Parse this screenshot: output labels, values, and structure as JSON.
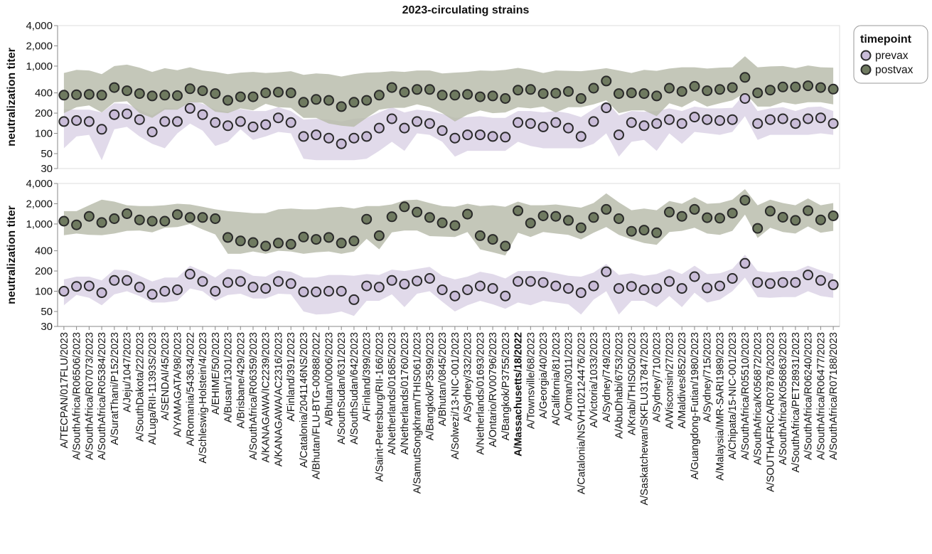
{
  "chart_data": {
    "type": "scatter",
    "title": "2023-circulating strains",
    "ylabel": "neutralization titer",
    "yscale": "log",
    "ylim": [
      30,
      4000
    ],
    "yticks": [
      30,
      50,
      100,
      200,
      400,
      1000,
      2000,
      4000
    ],
    "ytick_labels": [
      "30",
      "50",
      "100",
      "200",
      "400",
      "1,000",
      "2,000",
      "4,000"
    ],
    "grid": false,
    "legend": {
      "title": "timepoint",
      "placement": "top-right",
      "entries": [
        {
          "name": "prevax",
          "color": "#c9bcd8"
        },
        {
          "name": "postvax",
          "color": "#6f7a60"
        }
      ]
    },
    "colors": {
      "prevax_fill": "#c9bcd8",
      "prevax_band": "#dcd3e6",
      "postvax_fill": "#6f7a60",
      "postvax_band": "#b7bbaa",
      "marker_edge": "#2a2a2a"
    },
    "highlight_category": "A/Massachusetts/18/2022",
    "categories": [
      "A/TECPAN/017FLU/2023",
      "A/SouthAfrica/R06506/2023",
      "A/SouthAfrica/R07073/2023",
      "A/SouthAfrica/R05384/2023",
      "A/SuratThani/P152/2023",
      "A/Jeju/1047/2023",
      "A/SouthDakota/22/2023",
      "A/Luga/RII-11393S/2023",
      "A/SENDAI/45/2023",
      "A/YAMAGATA/98/2023",
      "A/Romania/543634/2022",
      "A/Schleswig-Holstein/4/2023",
      "A/EHIME/50/2023",
      "A/Busan/1301/2023",
      "A/Brisbane/429/2023",
      "A/SouthAfrica/R06359/2023",
      "A/KANAGAWA/IC2239/2023",
      "A/KANAGAWA/AC2316/2023",
      "A/Finland/391/2023",
      "A/Catalonia/2041146NS/2023",
      "A/Bhutan/FLU-BTG-00988/2022",
      "A/Bhutan/0006/2023",
      "A/SouthSudan/631/2023",
      "A/SouthSudan/642/2023",
      "A/Finland/399/2023",
      "A/Saint-Petersburg/RII-166/2023",
      "A/Netherlands/01685/2023",
      "A/Netherlands/01760/2023",
      "A/SamutSongkhram/THIS061/2023",
      "A/Bangkok/P3599/2023",
      "A/Bhutan/0845/2023",
      "A/Solwezi/13-NIC-001/2023",
      "A/Sydney/332/2023",
      "A/Netherlands/01693/2023",
      "A/Ontario/RV00796/2023",
      "A/Bangkok/P3755/2023",
      "A/Massachusetts/18/2022",
      "A/Townsville/68/2023",
      "A/Georgia/40/2023",
      "A/California/81/2023",
      "A/Oman/3011/2023",
      "A/Catalonia/NSVH102124476/2023",
      "A/Victoria/1033/2023",
      "A/Sydney/749/2023",
      "A/AbuDhabi/6753/2023",
      "A/Krabi/THIS050/2023",
      "A/Saskatchewan/SKFLU317847/2023",
      "A/Sydney/710/2023",
      "A/Wisconsin/27/2023",
      "A/Maldives/852/2023",
      "A/Guangdong-Futian/1980/2023",
      "A/Sydney/715/2023",
      "A/Malaysia/IMR-SARI1989/2023",
      "A/Chipata/15-NIC-001/2023",
      "A/SouthAfrica/R05510/2023",
      "A/SouthAfrica/K056872/2023",
      "A/SOUTHAFRICA/R07876/202023",
      "A/SouthAfrica/K056863/2023",
      "A/SouthAfrica/PET28931/2023",
      "A/SouthAfrica/R06240/2023",
      "A/SouthAfrica/R06477/2023",
      "A/SouthAfrica/R07188/2023"
    ],
    "panels": [
      {
        "series": [
          {
            "name": "prevax",
            "values": [
              150,
              155,
              150,
              115,
              190,
              195,
              160,
              105,
              150,
              150,
              235,
              190,
              145,
              130,
              150,
              125,
              135,
              170,
              145,
              90,
              95,
              85,
              70,
              85,
              90,
              120,
              165,
              120,
              150,
              140,
              110,
              85,
              95,
              95,
              90,
              88,
              145,
              140,
              125,
              145,
              120,
              90,
              150,
              240,
              95,
              145,
              130,
              140,
              160,
              140,
              175,
              160,
              155,
              160,
              330,
              140,
              160,
              165,
              140,
              165,
              170,
              140
            ],
            "lower": [
              60,
              90,
              95,
              40,
              115,
              125,
              90,
              70,
              60,
              100,
              140,
              110,
              65,
              75,
              115,
              80,
              90,
              105,
              100,
              42,
              40,
              40,
              40,
              40,
              42,
              55,
              75,
              55,
              100,
              95,
              75,
              45,
              55,
              55,
              55,
              55,
              75,
              65,
              60,
              60,
              60,
              60,
              70,
              100,
              45,
              75,
              80,
              55,
              100,
              70,
              105,
              100,
              95,
              105,
              180,
              80,
              95,
              95,
              95,
              95,
              100,
              95
            ],
            "upper": [
              230,
              225,
              225,
              205,
              280,
              275,
              225,
              185,
              240,
              230,
              305,
              275,
              225,
              210,
              230,
              215,
              215,
              245,
              215,
              160,
              165,
              160,
              150,
              165,
              170,
              205,
              245,
              205,
              225,
              215,
              195,
              170,
              175,
              180,
              170,
              170,
              215,
              215,
              205,
              215,
              200,
              175,
              230,
              300,
              185,
              215,
              210,
              215,
              235,
              215,
              250,
              235,
              235,
              240,
              395,
              215,
              235,
              245,
              215,
              245,
              250,
              215
            ]
          },
          {
            "name": "postvax",
            "values": [
              370,
              375,
              380,
              370,
              480,
              430,
              390,
              360,
              370,
              365,
              460,
              430,
              390,
              310,
              350,
              350,
              400,
              410,
              400,
              290,
              320,
              310,
              250,
              290,
              310,
              370,
              480,
              410,
              450,
              450,
              370,
              370,
              380,
              350,
              360,
              330,
              440,
              450,
              390,
              395,
              420,
              330,
              470,
              600,
              390,
              400,
              390,
              360,
              470,
              420,
              500,
              430,
              450,
              480,
              680,
              400,
              440,
              490,
              490,
              510,
              480,
              455
            ],
            "lower": [
              200,
              245,
              260,
              205,
              290,
              300,
              200,
              170,
              225,
              225,
              290,
              285,
              210,
              200,
              235,
              220,
              275,
              245,
              240,
              170,
              170,
              140,
              130,
              125,
              170,
              225,
              240,
              240,
              270,
              245,
              200,
              150,
              190,
              220,
              200,
              205,
              245,
              235,
              250,
              205,
              245,
              245,
              270,
              310,
              200,
              220,
              220,
              180,
              280,
              245,
              310,
              250,
              280,
              310,
              400,
              250,
              250,
              290,
              270,
              290,
              290,
              270
            ],
            "upper": [
              790,
              880,
              860,
              760,
              1000,
              1050,
              950,
              820,
              930,
              870,
              960,
              860,
              820,
              760,
              800,
              820,
              790,
              810,
              840,
              740,
              780,
              760,
              700,
              760,
              800,
              810,
              840,
              820,
              860,
              860,
              780,
              800,
              820,
              860,
              850,
              880,
              940,
              880,
              790,
              860,
              850,
              840,
              880,
              930,
              860,
              790,
              880,
              850,
              920,
              960,
              960,
              920,
              950,
              960,
              1400,
              960,
              990,
              1000,
              930,
              1020,
              960,
              950
            ]
          }
        ]
      },
      {
        "series": [
          {
            "name": "prevax",
            "values": [
              100,
              118,
              120,
              95,
              145,
              145,
              115,
              90,
              100,
              105,
              180,
              140,
              100,
              135,
              140,
              115,
              110,
              140,
              130,
              98,
              98,
              100,
              100,
              75,
              120,
              115,
              145,
              128,
              142,
              155,
              105,
              85,
              105,
              120,
              110,
              85,
              140,
              140,
              135,
              120,
              110,
              95,
              120,
              195,
              110,
              118,
              105,
              110,
              140,
              110,
              165,
              112,
              120,
              155,
              260,
              135,
              130,
              135,
              135,
              175,
              145,
              125
            ],
            "lower": [
              62,
              88,
              80,
              62,
              90,
              100,
              85,
              68,
              68,
              72,
              110,
              100,
              72,
              88,
              92,
              78,
              78,
              92,
              90,
              50,
              45,
              46,
              50,
              43,
              72,
              72,
              90,
              58,
              92,
              100,
              70,
              50,
              62,
              72,
              64,
              55,
              68,
              62,
              72,
              68,
              64,
              45,
              75,
              100,
              45,
              72,
              72,
              58,
              85,
              58,
              95,
              68,
              75,
              100,
              160,
              82,
              80,
              82,
              82,
              100,
              85,
              80
            ],
            "upper": [
              150,
              165,
              165,
              145,
              210,
              205,
              170,
              140,
              160,
              160,
              240,
              200,
              160,
              215,
              210,
              170,
              165,
              205,
              195,
              160,
              160,
              175,
              175,
              170,
              180,
              175,
              210,
              200,
              215,
              230,
              170,
              150,
              165,
              195,
              180,
              155,
              200,
              200,
              200,
              185,
              170,
              165,
              190,
              255,
              175,
              185,
              170,
              180,
              215,
              180,
              240,
              180,
              185,
              215,
              350,
              200,
              190,
              200,
              200,
              240,
              205,
              180
            ]
          },
          {
            "name": "postvax",
            "values": [
              1100,
              970,
              1300,
              1050,
              1200,
              1420,
              1150,
              1100,
              1100,
              1380,
              1250,
              1250,
              1200,
              630,
              560,
              530,
              470,
              520,
              500,
              640,
              590,
              630,
              520,
              560,
              1180,
              670,
              1280,
              1800,
              1500,
              1250,
              1040,
              950,
              1400,
              670,
              590,
              470,
              1570,
              1030,
              1320,
              1300,
              1130,
              880,
              1250,
              1650,
              1200,
              780,
              810,
              740,
              1500,
              1300,
              1650,
              1240,
              1220,
              1450,
              2250,
              860,
              1550,
              1260,
              1130,
              1580,
              1150,
              1320
            ],
            "lower": [
              680,
              720,
              690,
              680,
              720,
              790,
              800,
              750,
              880,
              900,
              1000,
              830,
              700,
              360,
              360,
              390,
              360,
              400,
              390,
              360,
              380,
              390,
              360,
              390,
              600,
              420,
              750,
              800,
              800,
              660,
              650,
              640,
              760,
              420,
              380,
              340,
              740,
              640,
              760,
              720,
              690,
              590,
              740,
              900,
              690,
              590,
              520,
              490,
              760,
              790,
              880,
              720,
              690,
              790,
              1380,
              620,
              880,
              760,
              720,
              920,
              740,
              790
            ],
            "upper": [
              1550,
              1550,
              1900,
              2300,
              2150,
              1900,
              1850,
              1850,
              1900,
              2000,
              1950,
              1800,
              1650,
              1550,
              1500,
              1450,
              1450,
              1650,
              1700,
              1650,
              1650,
              1750,
              1800,
              1700,
              1850,
              1850,
              1950,
              2250,
              2300,
              2050,
              1850,
              1800,
              2000,
              1850,
              1900,
              1800,
              2150,
              1900,
              1900,
              1950,
              1850,
              1750,
              2050,
              2850,
              2100,
              1600,
              1700,
              1600,
              2200,
              2000,
              2500,
              2000,
              2050,
              2300,
              3300,
              1900,
              2300,
              2050,
              1900,
              2400,
              1900,
              2050
            ]
          }
        ]
      }
    ]
  }
}
